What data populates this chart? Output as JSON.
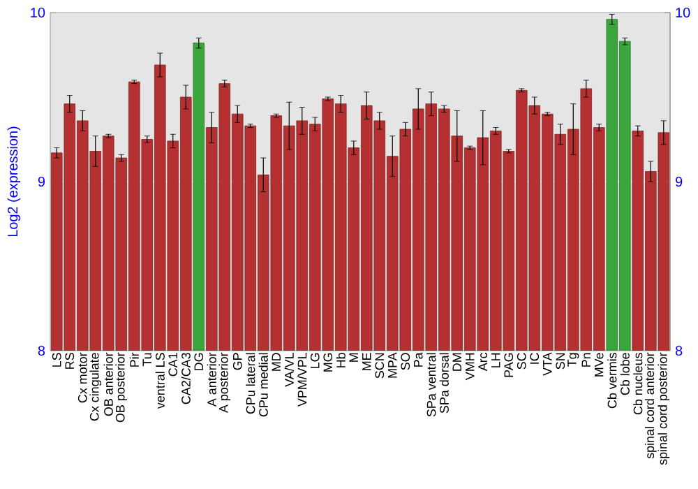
{
  "chart_data": {
    "type": "bar",
    "ylabel": "Log2 (expression)",
    "categories": [
      "LS",
      "RS",
      "Cx motor",
      "Cx cingulate",
      "OB anterior",
      "OB posterior",
      "Pir",
      "Tu",
      "ventral LS",
      "CA1",
      "CA2/CA3",
      "DG",
      "A anterior",
      "A posterior",
      "GP",
      "CPu lateral",
      "CPu medial",
      "MD",
      "VA/VL",
      "VPM/VPL",
      "LG",
      "MG",
      "Hb",
      "M",
      "ME",
      "SCN",
      "MPA",
      "SO",
      "Pa",
      "SPa ventral",
      "SPa dorsal",
      "DM",
      "VMH",
      "Arc",
      "LH",
      "PAG",
      "SC",
      "IC",
      "VTA",
      "SN",
      "Tg",
      "Pn",
      "MVe",
      "Cb vermis",
      "Cb lobe",
      "Cb nucleus",
      "spinal cord anterior",
      "spinal cord posterior"
    ],
    "values": [
      9.17,
      9.46,
      9.36,
      9.18,
      9.27,
      9.14,
      9.59,
      9.25,
      9.69,
      9.24,
      9.5,
      9.82,
      9.32,
      9.58,
      9.4,
      9.33,
      9.04,
      9.39,
      9.33,
      9.36,
      9.34,
      9.49,
      9.46,
      9.2,
      9.45,
      9.36,
      9.15,
      9.31,
      9.43,
      9.46,
      9.43,
      9.27,
      9.2,
      9.26,
      9.3,
      9.18,
      9.54,
      9.45,
      9.4,
      9.28,
      9.31,
      9.55,
      9.32,
      9.96,
      9.83,
      9.3,
      9.06,
      9.29
    ],
    "errors": [
      0.03,
      0.05,
      0.06,
      0.09,
      0.01,
      0.02,
      0.01,
      0.02,
      0.07,
      0.04,
      0.07,
      0.03,
      0.09,
      0.02,
      0.05,
      0.01,
      0.1,
      0.01,
      0.14,
      0.08,
      0.04,
      0.01,
      0.05,
      0.04,
      0.08,
      0.05,
      0.12,
      0.04,
      0.12,
      0.07,
      0.02,
      0.15,
      0.01,
      0.16,
      0.02,
      0.01,
      0.01,
      0.05,
      0.01,
      0.06,
      0.15,
      0.05,
      0.02,
      0.03,
      0.02,
      0.03,
      0.06,
      0.07
    ],
    "colors": [
      "#b53030",
      "#b53030",
      "#b53030",
      "#b53030",
      "#b53030",
      "#b53030",
      "#b53030",
      "#b53030",
      "#b53030",
      "#b53030",
      "#b53030",
      "#3aa53a",
      "#b53030",
      "#b53030",
      "#b53030",
      "#b53030",
      "#b53030",
      "#b53030",
      "#b53030",
      "#b53030",
      "#b53030",
      "#b53030",
      "#b53030",
      "#b53030",
      "#b53030",
      "#b53030",
      "#b53030",
      "#b53030",
      "#b53030",
      "#b53030",
      "#b53030",
      "#b53030",
      "#b53030",
      "#b53030",
      "#b53030",
      "#b53030",
      "#b53030",
      "#b53030",
      "#b53030",
      "#b53030",
      "#b53030",
      "#b53030",
      "#b53030",
      "#3aa53a",
      "#3aa53a",
      "#b53030",
      "#b53030",
      "#b53030"
    ],
    "ylim": [
      8,
      10
    ],
    "yticks": [
      8,
      9,
      10
    ],
    "y2lim": [
      8,
      10
    ],
    "y2ticks": [
      8,
      9,
      10
    ],
    "grid": "y"
  }
}
